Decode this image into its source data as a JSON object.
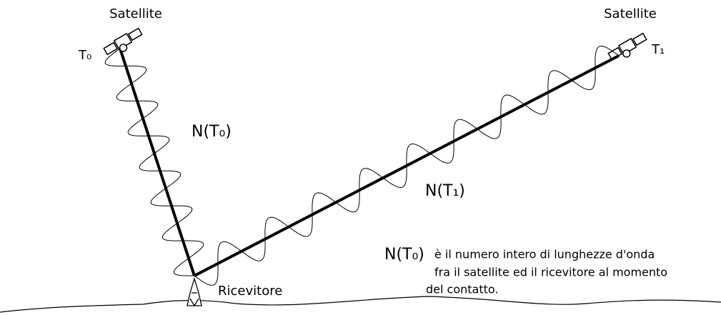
{
  "satellites": [
    {
      "label": "Satellite",
      "time": "T₀"
    },
    {
      "label": "Satellite",
      "time": "T₁"
    }
  ],
  "signals": [
    {
      "label": "N(T₀)"
    },
    {
      "label": "N(T₁)"
    }
  ],
  "receiver": {
    "label": "Ricevitore"
  },
  "note": {
    "term": "N(T₀)",
    "lines": [
      "è il numero intero di lunghezze d'onda",
      "fra il satellite ed il ricevitore al momento",
      "del contatto."
    ]
  }
}
